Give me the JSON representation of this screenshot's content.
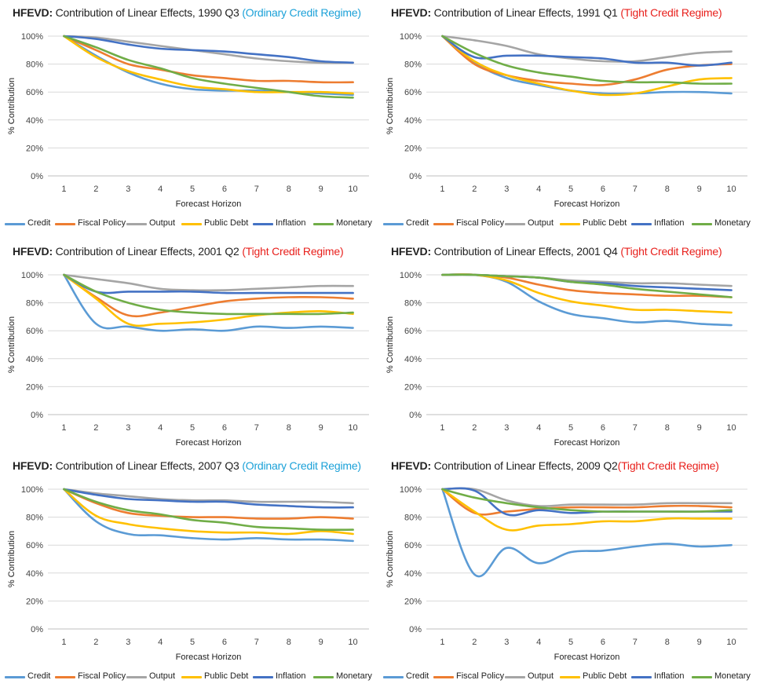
{
  "colors": {
    "Credit": "#5b9bd5",
    "Fiscal Policy": "#ed7d31",
    "Output": "#a5a5a5",
    "Public Debt": "#ffc000",
    "Inflation": "#4472c4",
    "Monetary": "#70ad47",
    "regime_ordinary": "#1ba1d8",
    "regime_tight": "#e8201c",
    "grid": "#d9d9d9"
  },
  "chart_data": [
    {
      "type": "line",
      "title_prefix": "HFEVD:",
      "title_main": "Contribution of Linear Effects, 1990 Q3",
      "title_regime": "(Ordinary Credit Regime)",
      "regime_kind": "ordinary",
      "xlabel": "Forecast Horizon",
      "ylabel": "% Contribution",
      "x": [
        1,
        2,
        3,
        4,
        5,
        6,
        7,
        8,
        9,
        10
      ],
      "yticks": [
        "0%",
        "20%",
        "40%",
        "60%",
        "80%",
        "100%"
      ],
      "ylim": [
        0,
        100
      ],
      "legend": [
        "Credit",
        "Fiscal Policy",
        "Output",
        "Public Debt",
        "Inflation",
        "Monetary"
      ],
      "series": [
        {
          "name": "Credit",
          "values": [
            100,
            86,
            74,
            66,
            62,
            61,
            61,
            60,
            59,
            58
          ]
        },
        {
          "name": "Fiscal Policy",
          "values": [
            100,
            90,
            80,
            76,
            72,
            70,
            68,
            68,
            67,
            67
          ]
        },
        {
          "name": "Output",
          "values": [
            100,
            99,
            96,
            93,
            90,
            87,
            84,
            82,
            81,
            81
          ]
        },
        {
          "name": "Public Debt",
          "values": [
            100,
            85,
            75,
            69,
            64,
            62,
            60,
            60,
            60,
            59
          ]
        },
        {
          "name": "Inflation",
          "values": [
            100,
            98,
            94,
            91,
            90,
            89,
            87,
            85,
            82,
            81
          ]
        },
        {
          "name": "Monetary",
          "values": [
            100,
            92,
            83,
            77,
            70,
            66,
            63,
            60,
            57,
            56
          ]
        }
      ]
    },
    {
      "type": "line",
      "title_prefix": "HFEVD:",
      "title_main": "Contribution of Linear Effects, 1991 Q1",
      "title_regime": "(Tight Credit Regime)",
      "regime_kind": "tight",
      "xlabel": "Forecast Horizon",
      "ylabel": "% Contribution",
      "x": [
        1,
        2,
        3,
        4,
        5,
        6,
        7,
        8,
        9,
        10
      ],
      "yticks": [
        "0%",
        "20%",
        "40%",
        "60%",
        "80%",
        "100%"
      ],
      "ylim": [
        0,
        100
      ],
      "legend": [
        "Credit",
        "Fiscal Policy",
        "Output",
        "Public Debt",
        "Inflation",
        "Monetary"
      ],
      "series": [
        {
          "name": "Credit",
          "values": [
            100,
            81,
            70,
            65,
            61,
            59,
            59,
            60,
            60,
            59
          ]
        },
        {
          "name": "Fiscal Policy",
          "values": [
            100,
            80,
            72,
            68,
            66,
            65,
            69,
            76,
            79,
            80
          ]
        },
        {
          "name": "Output",
          "values": [
            100,
            97,
            93,
            87,
            84,
            82,
            82,
            85,
            88,
            89
          ]
        },
        {
          "name": "Public Debt",
          "values": [
            100,
            82,
            72,
            66,
            61,
            58,
            59,
            64,
            69,
            70
          ]
        },
        {
          "name": "Inflation",
          "values": [
            100,
            85,
            86,
            86,
            85,
            84,
            81,
            81,
            79,
            81
          ]
        },
        {
          "name": "Monetary",
          "values": [
            100,
            88,
            79,
            74,
            71,
            68,
            67,
            67,
            66,
            66
          ]
        }
      ]
    },
    {
      "type": "line",
      "title_prefix": "HFEVD:",
      "title_main": "Contribution of Linear Effects, 2001 Q2",
      "title_regime": "(Tight Credit Regime)",
      "regime_kind": "tight",
      "xlabel": "Forecast Horizon",
      "ylabel": "% Contribution",
      "x": [
        1,
        2,
        3,
        4,
        5,
        6,
        7,
        8,
        9,
        10
      ],
      "yticks": [
        "0%",
        "20%",
        "40%",
        "60%",
        "80%",
        "100%"
      ],
      "ylim": [
        0,
        100
      ],
      "legend": [
        "Credit",
        "Fiscal Policy",
        "Output",
        "Public Debt",
        "Inflation",
        "Monetary"
      ],
      "series": [
        {
          "name": "Credit",
          "values": [
            100,
            65,
            63,
            60,
            61,
            60,
            63,
            62,
            63,
            62
          ]
        },
        {
          "name": "Fiscal Policy",
          "values": [
            100,
            84,
            71,
            73,
            77,
            81,
            83,
            84,
            84,
            83
          ]
        },
        {
          "name": "Output",
          "values": [
            100,
            97,
            94,
            90,
            89,
            89,
            90,
            91,
            92,
            92
          ]
        },
        {
          "name": "Public Debt",
          "values": [
            100,
            83,
            65,
            65,
            66,
            68,
            71,
            73,
            74,
            72
          ]
        },
        {
          "name": "Inflation",
          "values": [
            100,
            88,
            88,
            88,
            88,
            87,
            87,
            87,
            87,
            87
          ]
        },
        {
          "name": "Monetary",
          "values": [
            100,
            88,
            80,
            75,
            73,
            72,
            72,
            72,
            72,
            73
          ]
        }
      ]
    },
    {
      "type": "line",
      "title_prefix": "HFEVD:",
      "title_main": "Contribution of Linear Effects, 2001 Q4",
      "title_regime": "(Tight Credit Regime)",
      "regime_kind": "tight",
      "xlabel": "Forecast Horizon",
      "ylabel": "% Contribution",
      "x": [
        1,
        2,
        3,
        4,
        5,
        6,
        7,
        8,
        9,
        10
      ],
      "yticks": [
        "0%",
        "20%",
        "40%",
        "60%",
        "80%",
        "100%"
      ],
      "ylim": [
        0,
        100
      ],
      "legend": [
        "Credit",
        "Fiscal Policy",
        "Output",
        "Public Debt",
        "Inflation",
        "Monetary"
      ],
      "series": [
        {
          "name": "Credit",
          "values": [
            100,
            100,
            95,
            81,
            72,
            69,
            66,
            67,
            65,
            64
          ]
        },
        {
          "name": "Fiscal Policy",
          "values": [
            100,
            100,
            98,
            93,
            89,
            87,
            86,
            85,
            85,
            84
          ]
        },
        {
          "name": "Output",
          "values": [
            100,
            100,
            99,
            98,
            96,
            95,
            94,
            94,
            93,
            92
          ]
        },
        {
          "name": "Public Debt",
          "values": [
            100,
            100,
            96,
            87,
            81,
            78,
            75,
            75,
            74,
            73
          ]
        },
        {
          "name": "Inflation",
          "values": [
            100,
            100,
            99,
            98,
            95,
            94,
            92,
            91,
            90,
            89
          ]
        },
        {
          "name": "Monetary",
          "values": [
            100,
            100,
            99,
            98,
            95,
            93,
            90,
            88,
            86,
            84
          ]
        }
      ]
    },
    {
      "type": "line",
      "title_prefix": "HFEVD:",
      "title_main": "Contribution of Linear Effects, 2007 Q3",
      "title_regime": "(Ordinary Credit Regime)",
      "regime_kind": "ordinary",
      "xlabel": "Forecast Horizon",
      "ylabel": "% Contribution",
      "x": [
        1,
        2,
        3,
        4,
        5,
        6,
        7,
        8,
        9,
        10
      ],
      "yticks": [
        "0%",
        "20%",
        "40%",
        "60%",
        "80%",
        "100%"
      ],
      "ylim": [
        0,
        100
      ],
      "legend": [
        "Credit",
        "Fiscal Policy",
        "Output",
        "Public Debt",
        "Inflation",
        "Monetary"
      ],
      "series": [
        {
          "name": "Credit",
          "values": [
            100,
            77,
            68,
            67,
            65,
            64,
            65,
            64,
            64,
            63
          ]
        },
        {
          "name": "Fiscal Policy",
          "values": [
            100,
            90,
            83,
            81,
            80,
            80,
            79,
            79,
            80,
            79
          ]
        },
        {
          "name": "Output",
          "values": [
            100,
            97,
            95,
            93,
            92,
            92,
            91,
            91,
            91,
            90
          ]
        },
        {
          "name": "Public Debt",
          "values": [
            100,
            81,
            75,
            72,
            70,
            69,
            69,
            68,
            70,
            68
          ]
        },
        {
          "name": "Inflation",
          "values": [
            100,
            96,
            93,
            92,
            91,
            91,
            89,
            88,
            87,
            87
          ]
        },
        {
          "name": "Monetary",
          "values": [
            100,
            91,
            85,
            82,
            78,
            76,
            73,
            72,
            71,
            71
          ]
        }
      ]
    },
    {
      "type": "line",
      "title_prefix": "HFEVD:",
      "title_main": "Contribution of Linear Effects, 2009 Q2",
      "title_regime": "(Tight Credit Regime)",
      "regime_kind": "tight",
      "xlabel": "Forecast Horizon",
      "ylabel": "% Contribution",
      "x": [
        1,
        2,
        3,
        4,
        5,
        6,
        7,
        8,
        9,
        10
      ],
      "yticks": [
        "0%",
        "20%",
        "40%",
        "60%",
        "80%",
        "100%"
      ],
      "ylim": [
        0,
        100
      ],
      "legend": [
        "Credit",
        "Fiscal Policy",
        "Output",
        "Public Debt",
        "Inflation",
        "Monetary"
      ],
      "series": [
        {
          "name": "Credit",
          "values": [
            100,
            39,
            58,
            47,
            55,
            56,
            59,
            61,
            59,
            60
          ]
        },
        {
          "name": "Fiscal Policy",
          "values": [
            100,
            83,
            84,
            86,
            87,
            87,
            87,
            88,
            88,
            87
          ]
        },
        {
          "name": "Output",
          "values": [
            100,
            100,
            92,
            88,
            89,
            89,
            89,
            90,
            90,
            90
          ]
        },
        {
          "name": "Public Debt",
          "values": [
            100,
            84,
            71,
            74,
            75,
            77,
            77,
            79,
            79,
            79
          ]
        },
        {
          "name": "Inflation",
          "values": [
            100,
            99,
            82,
            85,
            83,
            84,
            84,
            84,
            84,
            84
          ]
        },
        {
          "name": "Monetary",
          "values": [
            100,
            94,
            90,
            87,
            85,
            84,
            84,
            84,
            84,
            85
          ]
        }
      ]
    }
  ]
}
